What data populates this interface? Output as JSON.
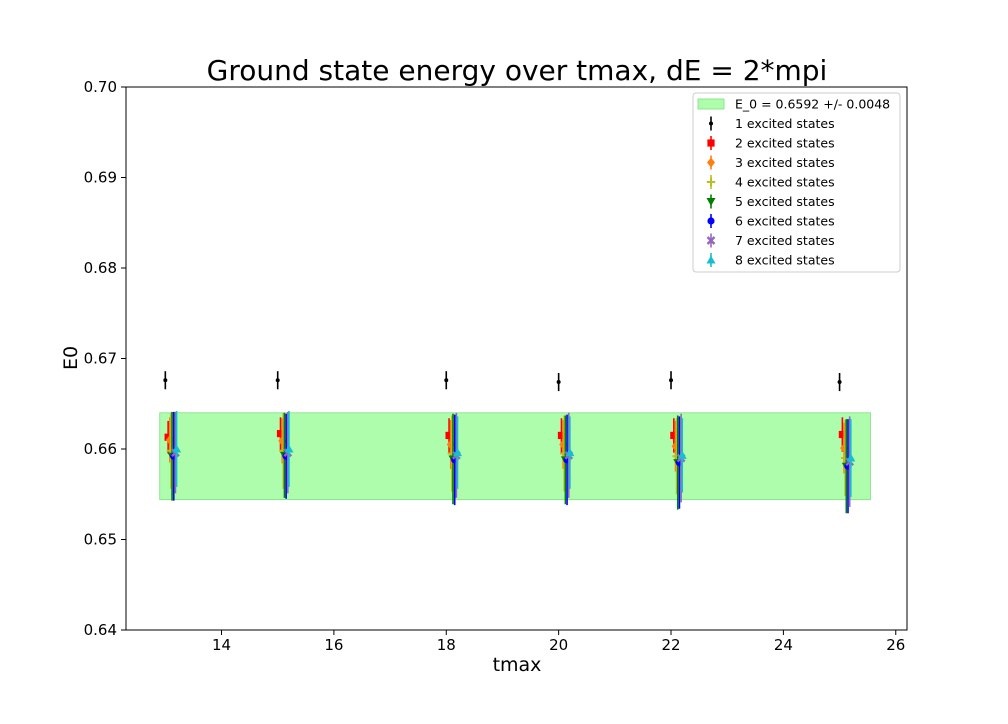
{
  "chart_data": {
    "type": "scatter",
    "title": "Ground state energy over tmax, dE = 2*mpi",
    "xlabel": "tmax",
    "ylabel": "E0",
    "xlim": [
      12.3,
      26.2
    ],
    "ylim": [
      0.64,
      0.7
    ],
    "xticks": [
      14,
      16,
      18,
      20,
      22,
      24,
      26
    ],
    "yticks": [
      0.64,
      0.65,
      0.66,
      0.67,
      0.68,
      0.69,
      0.7
    ],
    "xtick_labels": [
      "14",
      "16",
      "18",
      "20",
      "22",
      "24",
      "26"
    ],
    "ytick_labels": [
      "0.64",
      "0.65",
      "0.66",
      "0.67",
      "0.68",
      "0.69",
      "0.70"
    ],
    "grid": false,
    "legend_position": "top-right",
    "band": {
      "label": "E_0 = 0.6592 +/- 0.0048",
      "center": 0.6592,
      "halfwidth": 0.0048,
      "x_range": [
        12.9,
        25.55
      ],
      "color": "#adfdad"
    },
    "x": [
      13,
      15,
      18,
      20,
      22,
      25
    ],
    "series": [
      {
        "name": "1 excited states",
        "marker": "dot",
        "color": "#000000",
        "offset": 0.0,
        "values": [
          0.6676,
          0.6676,
          0.6676,
          0.6674,
          0.6676,
          0.6674
        ],
        "errors": [
          0.001,
          0.001,
          0.001,
          0.001,
          0.001,
          0.001
        ]
      },
      {
        "name": "2 excited states",
        "marker": "square",
        "color": "#ff0000",
        "offset": 0.05,
        "values": [
          0.6613,
          0.6617,
          0.6615,
          0.6615,
          0.6615,
          0.6616
        ],
        "errors": [
          0.0018,
          0.0018,
          0.0019,
          0.0019,
          0.0019,
          0.0019
        ]
      },
      {
        "name": "3 excited states",
        "marker": "diamond",
        "color": "#ff7f0e",
        "offset": 0.08,
        "values": [
          0.661,
          0.6609,
          0.6605,
          0.6605,
          0.6603,
          0.6601
        ],
        "errors": [
          0.0025,
          0.0025,
          0.0027,
          0.0027,
          0.0028,
          0.0028
        ]
      },
      {
        "name": "4 excited states",
        "marker": "plus",
        "color": "#bcbd22",
        "offset": 0.1,
        "values": [
          0.6598,
          0.6598,
          0.6595,
          0.6595,
          0.6592,
          0.659
        ],
        "errors": [
          0.0042,
          0.0042,
          0.0042,
          0.0042,
          0.0042,
          0.0042
        ]
      },
      {
        "name": "5 excited states",
        "marker": "triangle-down",
        "color": "#008000",
        "offset": 0.12,
        "values": [
          0.6592,
          0.6593,
          0.6589,
          0.6588,
          0.6585,
          0.6581
        ],
        "errors": [
          0.0049,
          0.0047,
          0.005,
          0.0049,
          0.0052,
          0.0052
        ]
      },
      {
        "name": "6 excited states",
        "marker": "circle",
        "color": "#0000ff",
        "offset": 0.15,
        "values": [
          0.6592,
          0.6592,
          0.6588,
          0.6588,
          0.6585,
          0.6581
        ],
        "errors": [
          0.0049,
          0.0047,
          0.005,
          0.005,
          0.0051,
          0.0052
        ]
      },
      {
        "name": "7 excited states",
        "marker": "x",
        "color": "#9467bd",
        "offset": 0.18,
        "values": [
          0.6596,
          0.6596,
          0.6593,
          0.6593,
          0.659,
          0.6586
        ],
        "errors": [
          0.0045,
          0.0045,
          0.0047,
          0.0047,
          0.0049,
          0.005
        ]
      },
      {
        "name": "8 excited states",
        "marker": "triangle-up",
        "color": "#17becf",
        "offset": 0.2,
        "values": [
          0.66,
          0.66,
          0.6596,
          0.6596,
          0.6593,
          0.659
        ],
        "errors": [
          0.0042,
          0.0042,
          0.004,
          0.004,
          0.0041,
          0.0043
        ]
      }
    ]
  }
}
